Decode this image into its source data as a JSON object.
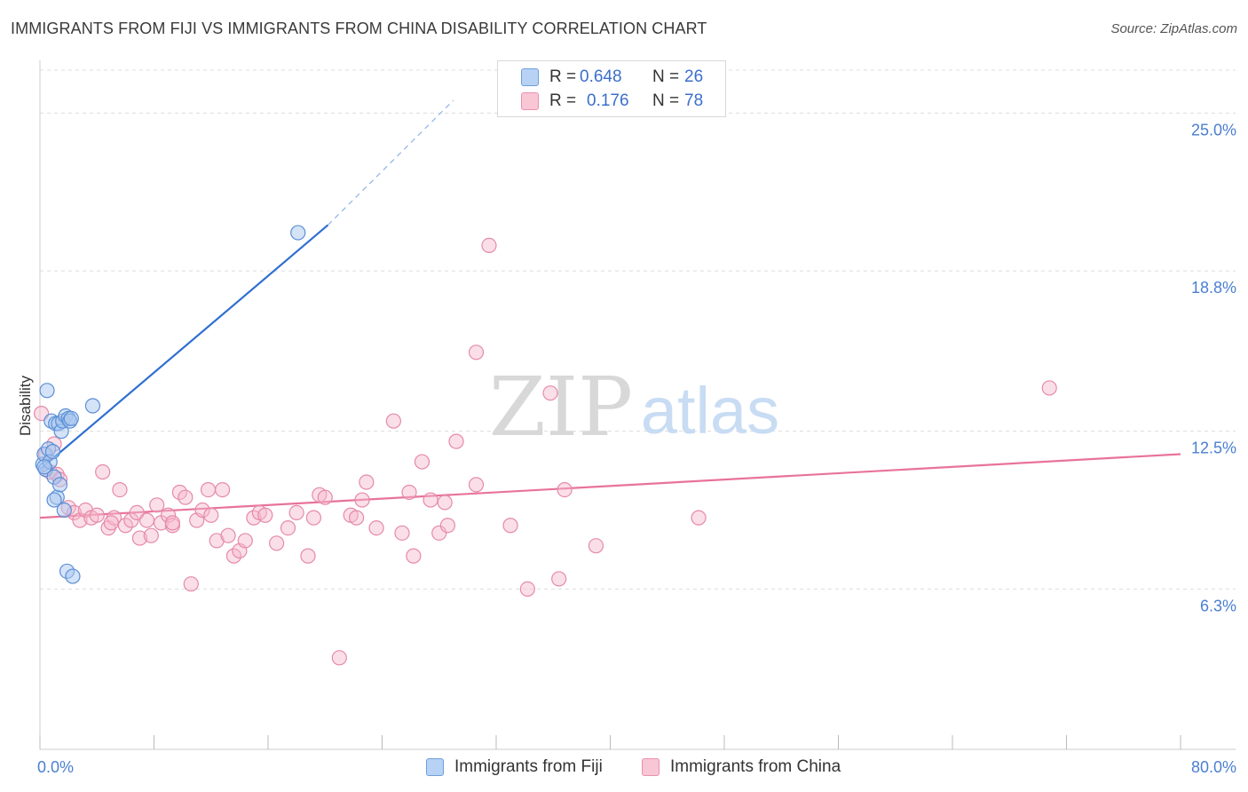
{
  "title": "IMMIGRANTS FROM FIJI VS IMMIGRANTS FROM CHINA DISABILITY CORRELATION CHART",
  "source": "Source: ZipAtlas.com",
  "watermark": {
    "zip": "ZIP",
    "atlas": "atlas"
  },
  "legend": {
    "r_label": "R =",
    "n_label": "N =",
    "fiji": {
      "r": "0.648",
      "n": "26"
    },
    "china": {
      "r": "0.176",
      "n": "78"
    }
  },
  "colors": {
    "fiji_fill": "#a9c8f0",
    "fiji_stroke": "#5b8fd6",
    "fiji_line": "#2f6fd0",
    "china_fill": "#f7b9cc",
    "china_stroke": "#e58aa8",
    "china_line": "#e8739a",
    "tick_label": "#4a7fd0",
    "grid": "#dddddd"
  },
  "chart_data": {
    "type": "scatter",
    "ylabel": "Disability",
    "x_tick_labels": [
      "0.0%",
      "80.0%"
    ],
    "y_tick_labels": [
      "6.3%",
      "12.5%",
      "18.8%",
      "25.0%"
    ],
    "xlim": [
      0,
      80
    ],
    "ylim": [
      0,
      27
    ],
    "y_ticks": [
      6.3,
      12.5,
      18.8,
      25.0
    ],
    "grid": true,
    "series": [
      {
        "name": "Immigrants from Fiji",
        "points": [
          [
            0.2,
            11.2
          ],
          [
            0.3,
            11.6
          ],
          [
            0.4,
            11.0
          ],
          [
            0.5,
            14.1
          ],
          [
            0.6,
            11.8
          ],
          [
            0.7,
            11.3
          ],
          [
            0.8,
            12.9
          ],
          [
            0.9,
            11.7
          ],
          [
            1.0,
            10.7
          ],
          [
            1.1,
            12.8
          ],
          [
            1.2,
            9.9
          ],
          [
            1.3,
            12.8
          ],
          [
            1.4,
            10.4
          ],
          [
            1.5,
            12.5
          ],
          [
            1.6,
            12.9
          ],
          [
            1.7,
            9.4
          ],
          [
            1.8,
            13.1
          ],
          [
            1.9,
            7.0
          ],
          [
            2.0,
            13.0
          ],
          [
            2.1,
            12.9
          ],
          [
            2.2,
            13.0
          ],
          [
            2.3,
            6.8
          ],
          [
            3.7,
            13.5
          ],
          [
            18.1,
            20.3
          ],
          [
            0.3,
            11.1
          ],
          [
            1.0,
            9.8
          ]
        ],
        "trend": {
          "x": [
            0,
            20.2
          ],
          "y": [
            11.0,
            20.6
          ],
          "dashed_to": [
            29,
            25.5
          ]
        }
      },
      {
        "name": "Immigrants from China",
        "points": [
          [
            0.1,
            13.2
          ],
          [
            0.4,
            11.6
          ],
          [
            0.7,
            10.9
          ],
          [
            1.0,
            12.0
          ],
          [
            1.2,
            10.8
          ],
          [
            1.4,
            10.6
          ],
          [
            2.0,
            9.5
          ],
          [
            2.4,
            9.3
          ],
          [
            2.8,
            9.0
          ],
          [
            3.2,
            9.4
          ],
          [
            3.6,
            9.1
          ],
          [
            4.0,
            9.2
          ],
          [
            4.4,
            10.9
          ],
          [
            4.8,
            8.7
          ],
          [
            5.2,
            9.1
          ],
          [
            5.6,
            10.2
          ],
          [
            6.0,
            8.8
          ],
          [
            6.4,
            9.0
          ],
          [
            6.8,
            9.3
          ],
          [
            7.0,
            8.3
          ],
          [
            7.5,
            9.0
          ],
          [
            7.8,
            8.4
          ],
          [
            8.2,
            9.6
          ],
          [
            8.5,
            8.9
          ],
          [
            9.0,
            9.2
          ],
          [
            9.3,
            8.8
          ],
          [
            9.8,
            10.1
          ],
          [
            10.2,
            9.9
          ],
          [
            10.6,
            6.5
          ],
          [
            11.0,
            9.0
          ],
          [
            11.4,
            9.4
          ],
          [
            11.8,
            10.2
          ],
          [
            12.4,
            8.2
          ],
          [
            12.8,
            10.2
          ],
          [
            13.2,
            8.4
          ],
          [
            13.6,
            7.6
          ],
          [
            14.0,
            7.8
          ],
          [
            14.4,
            8.2
          ],
          [
            15.0,
            9.1
          ],
          [
            15.4,
            9.3
          ],
          [
            15.8,
            9.2
          ],
          [
            16.6,
            8.1
          ],
          [
            17.4,
            8.7
          ],
          [
            18.0,
            9.3
          ],
          [
            18.8,
            7.6
          ],
          [
            19.2,
            9.1
          ],
          [
            19.6,
            10.0
          ],
          [
            20.0,
            9.9
          ],
          [
            21.0,
            3.6
          ],
          [
            21.8,
            9.2
          ],
          [
            22.2,
            9.1
          ],
          [
            22.6,
            9.8
          ],
          [
            22.9,
            10.5
          ],
          [
            23.6,
            8.7
          ],
          [
            24.8,
            12.9
          ],
          [
            25.4,
            8.5
          ],
          [
            25.9,
            10.1
          ],
          [
            26.2,
            7.6
          ],
          [
            26.8,
            11.3
          ],
          [
            27.4,
            9.8
          ],
          [
            28.0,
            8.5
          ],
          [
            28.4,
            9.7
          ],
          [
            28.6,
            8.8
          ],
          [
            29.2,
            12.1
          ],
          [
            30.6,
            10.4
          ],
          [
            31.5,
            19.8
          ],
          [
            30.6,
            15.6
          ],
          [
            33.0,
            8.8
          ],
          [
            34.2,
            6.3
          ],
          [
            35.8,
            14.0
          ],
          [
            36.4,
            6.7
          ],
          [
            36.8,
            10.2
          ],
          [
            39.0,
            8.0
          ],
          [
            46.2,
            9.1
          ],
          [
            70.8,
            14.2
          ],
          [
            9.3,
            8.9
          ],
          [
            5.0,
            8.9
          ],
          [
            12.0,
            9.2
          ]
        ],
        "trend": {
          "x": [
            0,
            80
          ],
          "y": [
            9.1,
            11.6
          ]
        }
      }
    ]
  }
}
